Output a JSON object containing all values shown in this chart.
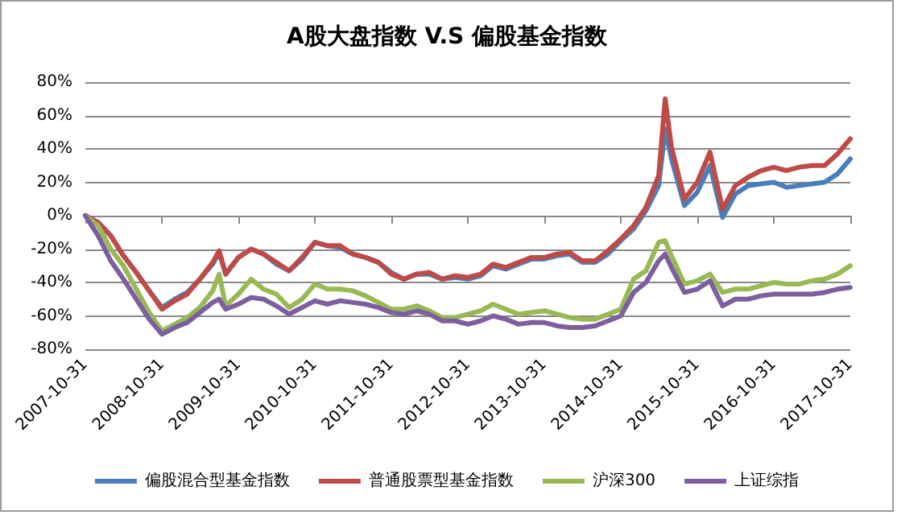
{
  "chart_data": {
    "type": "line",
    "title": "A股大盘指数 V.S 偏股基金指数",
    "x": [
      "2007-10-31",
      "2007-12-31",
      "2008-02-29",
      "2008-04-30",
      "2008-06-30",
      "2008-08-31",
      "2008-10-31",
      "2008-12-31",
      "2009-02-28",
      "2009-04-30",
      "2009-06-30",
      "2009-07-31",
      "2009-08-31",
      "2009-10-31",
      "2009-12-31",
      "2010-02-28",
      "2010-04-30",
      "2010-06-30",
      "2010-08-31",
      "2010-10-31",
      "2010-12-31",
      "2011-02-28",
      "2011-04-30",
      "2011-06-30",
      "2011-08-31",
      "2011-10-31",
      "2011-12-31",
      "2012-02-29",
      "2012-04-30",
      "2012-06-30",
      "2012-08-31",
      "2012-10-31",
      "2012-12-31",
      "2013-02-28",
      "2013-04-30",
      "2013-06-30",
      "2013-08-31",
      "2013-10-31",
      "2013-12-31",
      "2014-02-28",
      "2014-04-30",
      "2014-06-30",
      "2014-08-31",
      "2014-10-31",
      "2014-12-31",
      "2015-02-28",
      "2015-04-30",
      "2015-05-31",
      "2015-06-30",
      "2015-08-31",
      "2015-10-31",
      "2015-12-31",
      "2016-02-29",
      "2016-04-30",
      "2016-06-30",
      "2016-08-31",
      "2016-10-31",
      "2016-12-31",
      "2017-02-28",
      "2017-04-30",
      "2017-06-30",
      "2017-08-31",
      "2017-10-31"
    ],
    "series": [
      {
        "name": "偏股混合型基金指数",
        "color": "#4a7ebb",
        "values": [
          0,
          -4,
          -12,
          -24,
          -34,
          -45,
          -55,
          -50,
          -46,
          -38,
          -29,
          -22,
          -35,
          -25,
          -20,
          -23,
          -29,
          -33,
          -26,
          -16,
          -18,
          -19,
          -23,
          -25,
          -28,
          -34,
          -38,
          -35,
          -35,
          -38,
          -37,
          -38,
          -36,
          -30,
          -32,
          -29,
          -26,
          -26,
          -24,
          -23,
          -28,
          -28,
          -23,
          -15,
          -8,
          3,
          18,
          52,
          34,
          6,
          14,
          30,
          -1,
          13,
          18,
          19,
          20,
          17,
          18,
          19,
          20,
          25,
          34
        ]
      },
      {
        "name": "普通股票型基金指数",
        "color": "#be4b48",
        "values": [
          0,
          -4,
          -12,
          -24,
          -34,
          -45,
          -56,
          -51,
          -47,
          -38,
          -28,
          -21,
          -35,
          -25,
          -20,
          -23,
          -28,
          -33,
          -25,
          -16,
          -18,
          -18,
          -23,
          -25,
          -28,
          -35,
          -38,
          -35,
          -34,
          -38,
          -36,
          -37,
          -35,
          -29,
          -31,
          -28,
          -25,
          -25,
          -23,
          -22,
          -27,
          -27,
          -21,
          -14,
          -6,
          5,
          24,
          70,
          41,
          10,
          20,
          38,
          4,
          18,
          23,
          27,
          29,
          27,
          29,
          30,
          30,
          37,
          46
        ]
      },
      {
        "name": "沪深300",
        "color": "#98b954",
        "values": [
          0,
          -6,
          -20,
          -30,
          -44,
          -58,
          -69,
          -65,
          -61,
          -55,
          -45,
          -35,
          -54,
          -47,
          -38,
          -44,
          -47,
          -55,
          -50,
          -41,
          -44,
          -44,
          -45,
          -48,
          -52,
          -56,
          -56,
          -54,
          -57,
          -61,
          -61,
          -59,
          -57,
          -53,
          -56,
          -59,
          -58,
          -57,
          -59,
          -61,
          -62,
          -62,
          -59,
          -56,
          -38,
          -33,
          -16,
          -15,
          -24,
          -41,
          -39,
          -35,
          -46,
          -44,
          -44,
          -42,
          -40,
          -41,
          -41,
          -39,
          -38,
          -35,
          -30
        ]
      },
      {
        "name": "上证综指",
        "color": "#7d5fa0",
        "values": [
          0,
          -12,
          -27,
          -38,
          -50,
          -62,
          -71,
          -67,
          -64,
          -58,
          -52,
          -50,
          -56,
          -53,
          -49,
          -50,
          -54,
          -59,
          -55,
          -51,
          -53,
          -51,
          -52,
          -53,
          -55,
          -58,
          -59,
          -57,
          -59,
          -63,
          -63,
          -65,
          -63,
          -60,
          -62,
          -65,
          -64,
          -64,
          -66,
          -67,
          -67,
          -66,
          -63,
          -60,
          -46,
          -40,
          -27,
          -23,
          -31,
          -46,
          -44,
          -39,
          -54,
          -50,
          -50,
          -48,
          -47,
          -47,
          -47,
          -47,
          -46,
          -44,
          -43
        ]
      }
    ],
    "xlim": [
      "2007-10-31",
      "2017-10-31"
    ],
    "xticks": [
      "2007-10-31",
      "2008-10-31",
      "2009-10-31",
      "2010-10-31",
      "2011-10-31",
      "2012-10-31",
      "2013-10-31",
      "2014-10-31",
      "2015-10-31",
      "2016-10-31",
      "2017-10-31"
    ],
    "ylim": [
      -80,
      80
    ],
    "yticks": [
      {
        "value": -80,
        "label": "-80%"
      },
      {
        "value": -60,
        "label": "-60%"
      },
      {
        "value": -40,
        "label": "-40%"
      },
      {
        "value": -20,
        "label": "-20%"
      },
      {
        "value": 0,
        "label": "0%"
      },
      {
        "value": 20,
        "label": "20%"
      },
      {
        "value": 40,
        "label": "40%"
      },
      {
        "value": 60,
        "label": "60%"
      },
      {
        "value": 80,
        "label": "80%"
      }
    ],
    "grid": "y",
    "legend": "bottom",
    "marker": "none",
    "line_style": "solid"
  }
}
